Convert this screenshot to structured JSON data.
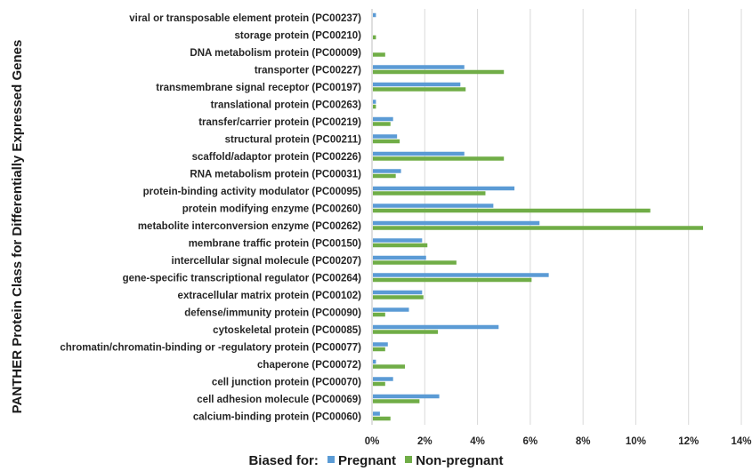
{
  "chart_data": {
    "type": "bar",
    "orientation": "horizontal",
    "ylabel": "PANTHER Protein Class for Differentially Expressed Genes",
    "xlim": [
      0,
      14
    ],
    "xticks": [
      "0%",
      "2%",
      "4%",
      "6%",
      "8%",
      "10%",
      "12%",
      "14%"
    ],
    "grid": true,
    "legend": {
      "placement": "bottom",
      "prefix": "Biased for:"
    },
    "colors": {
      "Pregnant": "#5b9bd5",
      "Non-pregnant": "#70ad47"
    },
    "categories": [
      "viral or transposable element protein (PC00237)",
      "storage protein (PC00210)",
      "DNA metabolism protein (PC00009)",
      "transporter (PC00227)",
      "transmembrane signal receptor (PC00197)",
      "translational protein (PC00263)",
      "transfer/carrier protein (PC00219)",
      "structural protein (PC00211)",
      "scaffold/adaptor protein (PC00226)",
      "RNA metabolism protein (PC00031)",
      "protein-binding activity modulator (PC00095)",
      "protein modifying enzyme (PC00260)",
      "metabolite interconversion enzyme (PC00262)",
      "membrane traffic protein (PC00150)",
      "intercellular signal molecule (PC00207)",
      "gene-specific transcriptional regulator (PC00264)",
      "extracellular matrix protein (PC00102)",
      "defense/immunity protein (PC00090)",
      "cytoskeletal protein (PC00085)",
      "chromatin/chromatin-binding or -regulatory protein (PC00077)",
      "chaperone (PC00072)",
      "cell junction protein (PC00070)",
      "cell adhesion molecule (PC00069)",
      "calcium-binding protein (PC00060)"
    ],
    "series": [
      {
        "name": "Pregnant",
        "values": [
          0.15,
          0,
          0,
          3.5,
          3.35,
          0.15,
          0.8,
          0.95,
          3.5,
          1.1,
          5.4,
          4.6,
          6.35,
          1.9,
          2.05,
          6.7,
          1.9,
          1.4,
          4.8,
          0.6,
          0.15,
          0.8,
          2.55,
          0.3
        ]
      },
      {
        "name": "Non-pregnant",
        "values": [
          0,
          0.15,
          0.5,
          5.0,
          3.55,
          0.15,
          0.7,
          1.05,
          5.0,
          0.9,
          4.3,
          10.55,
          12.55,
          2.1,
          3.2,
          6.05,
          1.95,
          0.5,
          2.5,
          0.5,
          1.25,
          0.5,
          1.8,
          0.7
        ]
      }
    ]
  }
}
